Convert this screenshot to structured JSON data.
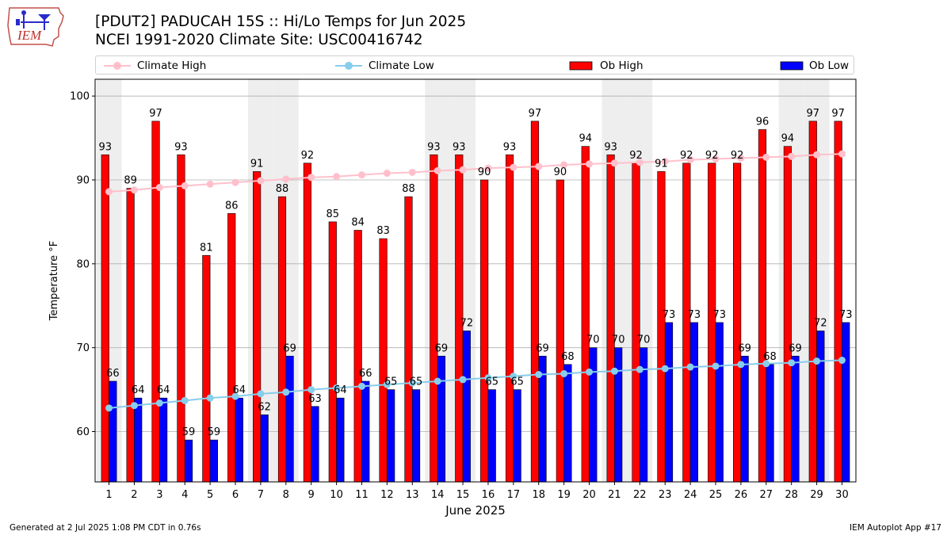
{
  "title_line1": "[PDUT2] PADUCAH 15S :: Hi/Lo Temps for Jun 2025",
  "title_line2": "NCEI 1991-2020 Climate Site: USC00416742",
  "logo_text": "IEM",
  "footer_left": "Generated at 2 Jul 2025 1:08 PM CDT in 0.76s",
  "footer_right": "IEM Autoplot App #17",
  "colors": {
    "ob_high": "#ff0000",
    "ob_low": "#0000ff",
    "climate_high": "#ffc0cb",
    "climate_low": "#87ceeb",
    "weekend_band": "#eeeeee",
    "grid": "#b0b0b0"
  },
  "legend": {
    "climate_high": "Climate High",
    "climate_low": "Climate Low",
    "ob_high": "Ob High",
    "ob_low": "Ob Low"
  },
  "chart_data": {
    "type": "bar",
    "xlabel": "June 2025",
    "ylabel": "Temperature °F",
    "ylim": [
      54,
      102
    ],
    "yticks": [
      60,
      70,
      80,
      90,
      100
    ],
    "grid": "horizontal",
    "legend_position": "top",
    "categories": [
      "1",
      "2",
      "3",
      "4",
      "5",
      "6",
      "7",
      "8",
      "9",
      "10",
      "11",
      "12",
      "13",
      "14",
      "15",
      "16",
      "17",
      "18",
      "19",
      "20",
      "21",
      "22",
      "23",
      "24",
      "25",
      "26",
      "27",
      "28",
      "29",
      "30"
    ],
    "weekend_days": [
      1,
      7,
      8,
      14,
      15,
      21,
      22,
      28,
      29
    ],
    "series": [
      {
        "name": "Ob High",
        "kind": "bar",
        "values": [
          93,
          89,
          97,
          93,
          81,
          86,
          91,
          88,
          92,
          85,
          84,
          83,
          88,
          93,
          93,
          90,
          93,
          97,
          90,
          94,
          93,
          92,
          91,
          92,
          92,
          92,
          96,
          94,
          97,
          97
        ]
      },
      {
        "name": "Ob Low",
        "kind": "bar",
        "values": [
          66,
          64,
          64,
          59,
          59,
          64,
          62,
          69,
          63,
          64,
          66,
          65,
          65,
          69,
          72,
          65,
          65,
          69,
          68,
          70,
          70,
          70,
          73,
          73,
          73,
          69,
          68,
          69,
          72,
          73
        ]
      },
      {
        "name": "Climate High",
        "kind": "line",
        "values": [
          88.6,
          88.8,
          89.1,
          89.3,
          89.5,
          89.7,
          89.9,
          90.1,
          90.3,
          90.4,
          90.6,
          90.8,
          90.9,
          91.1,
          91.2,
          91.4,
          91.5,
          91.6,
          91.8,
          91.9,
          92.0,
          92.1,
          92.2,
          92.4,
          92.5,
          92.6,
          92.7,
          92.8,
          93.0,
          93.1
        ]
      },
      {
        "name": "Climate Low",
        "kind": "line",
        "values": [
          62.8,
          63.1,
          63.4,
          63.7,
          64.0,
          64.2,
          64.5,
          64.7,
          65.0,
          65.2,
          65.4,
          65.6,
          65.8,
          66.0,
          66.2,
          66.4,
          66.6,
          66.8,
          66.9,
          67.1,
          67.2,
          67.4,
          67.5,
          67.7,
          67.8,
          68.0,
          68.1,
          68.2,
          68.4,
          68.5
        ]
      }
    ]
  }
}
